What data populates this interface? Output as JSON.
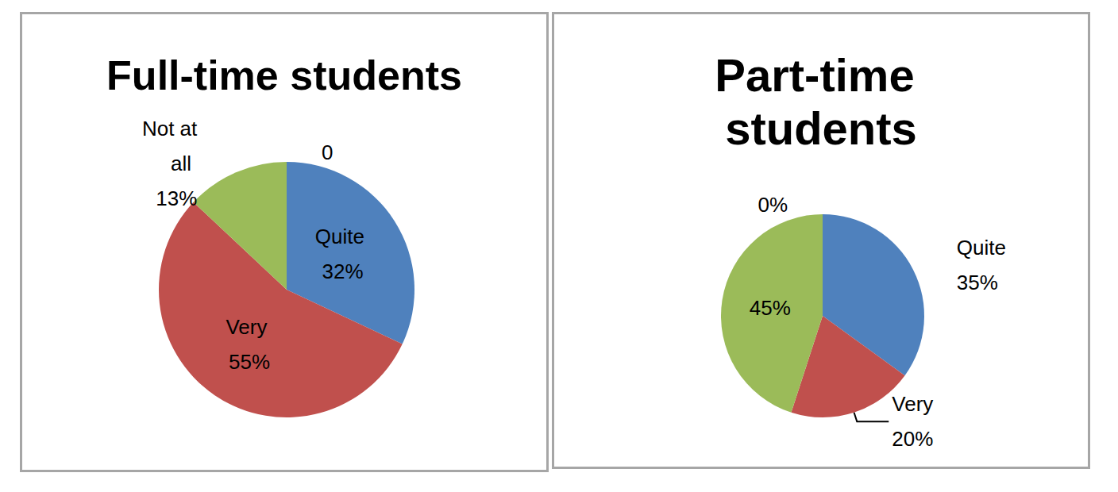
{
  "chart_data": [
    {
      "type": "pie",
      "title": "Full-time students",
      "categories": [
        "Quite",
        "Very",
        "Not at all",
        null
      ],
      "values": [
        32,
        55,
        13,
        0
      ],
      "value_labels": [
        "32%",
        "55%",
        "13%",
        "0"
      ],
      "colors": [
        "#4F81BD",
        "#C0504D",
        "#9BBB59",
        "#8064A2"
      ],
      "data_labels": true
    },
    {
      "type": "pie",
      "title": "Part-time students",
      "categories": [
        "Quite",
        "Very",
        null,
        null
      ],
      "values": [
        35,
        20,
        45,
        0
      ],
      "value_labels": [
        "35%",
        "20%",
        "45%",
        "0%"
      ],
      "colors": [
        "#4F81BD",
        "#C0504D",
        "#9BBB59",
        "#8064A2"
      ],
      "data_labels": true
    }
  ]
}
